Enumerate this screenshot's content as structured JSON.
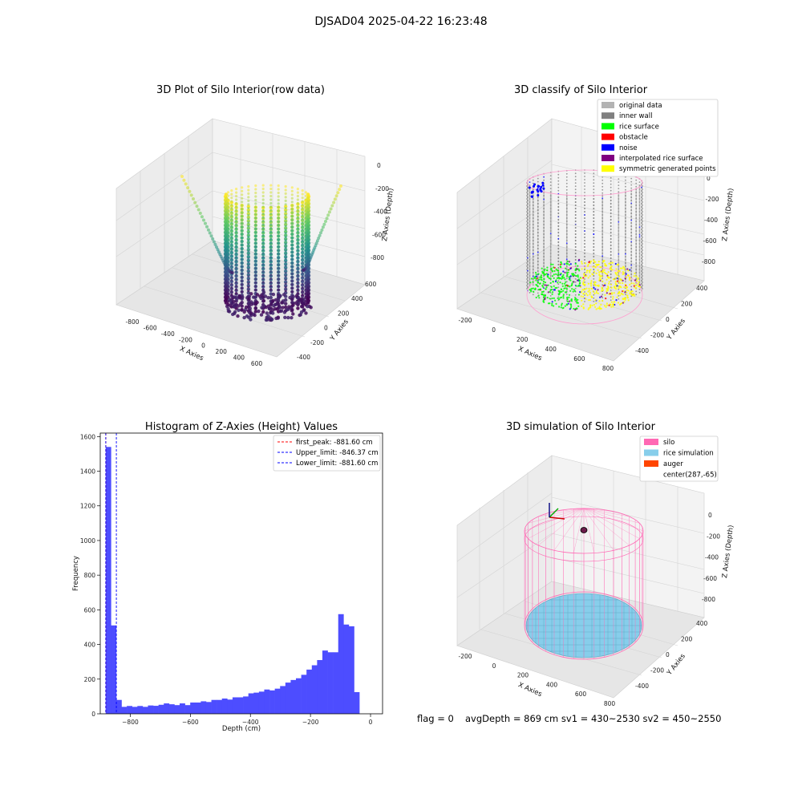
{
  "suptitle": "DJSAD04 2025-04-22 16:23:48",
  "footer": {
    "flag": "flag = 0",
    "stats": "avgDepth = 869 cm  sv1 = 430~2530  sv2 = 450~2550"
  },
  "chart_data": [
    {
      "type": "scatter3d",
      "title": "3D Plot of Silo Interior(row data)",
      "xlabel": "X Axies",
      "ylabel": "Y Axies",
      "zlabel": "Z Axies (Depth)",
      "x_ticks": [
        "-800",
        "-600",
        "-400",
        "-200",
        "0",
        "200",
        "400",
        "600"
      ],
      "y_ticks": [
        "-400",
        "-200",
        "0",
        "200",
        "400",
        "600"
      ],
      "z_ticks": [
        "0",
        "-200",
        "-400",
        "-600",
        "-800"
      ],
      "colormap": "viridis",
      "xlim": [
        -900,
        700
      ],
      "ylim": [
        -450,
        650
      ],
      "zlim": [
        -900,
        50
      ]
    },
    {
      "type": "scatter3d",
      "title": "3D classify of Silo Interior",
      "xlabel": "X Axies",
      "ylabel": "Y Axies",
      "zlabel": "Z Axies (Depth)",
      "x_ticks": [
        "-200",
        "0",
        "200",
        "400",
        "600",
        "800"
      ],
      "y_ticks": [
        "-400",
        "-200",
        "0",
        "200",
        "400"
      ],
      "z_ticks": [
        "0",
        "-200",
        "-400",
        "-600",
        "-800"
      ],
      "legend_position": "top-right",
      "legend": [
        {
          "label": "original data",
          "color": "#b3b3b3"
        },
        {
          "label": "inner wall",
          "color": "#808080"
        },
        {
          "label": "rice surface",
          "color": "#00ff00"
        },
        {
          "label": "obstacle",
          "color": "#ff0000"
        },
        {
          "label": "noise",
          "color": "#0000ff"
        },
        {
          "label": "interpolated rice surface",
          "color": "#800080"
        },
        {
          "label": "symmetric generated points",
          "color": "#ffff00"
        }
      ]
    },
    {
      "type": "bar",
      "title": "Histogram of Z-Axies (Height) Values",
      "xlabel": "Depth (cm)",
      "ylabel": "Frequency",
      "xlim": [
        -900,
        40
      ],
      "ylim": [
        0,
        1620
      ],
      "x_ticks": [
        -800,
        -600,
        -400,
        -200,
        0
      ],
      "y_ticks": [
        0,
        200,
        400,
        600,
        800,
        1000,
        1200,
        1400,
        1600
      ],
      "bar_color": "#4d4dff",
      "bin_start": -882,
      "bin_width": 17.6,
      "values": [
        1540,
        510,
        80,
        40,
        45,
        40,
        45,
        40,
        48,
        46,
        52,
        60,
        55,
        50,
        60,
        50,
        65,
        65,
        72,
        68,
        80,
        80,
        88,
        82,
        95,
        95,
        100,
        118,
        122,
        128,
        140,
        135,
        145,
        160,
        180,
        195,
        205,
        225,
        255,
        280,
        310,
        365,
        355,
        355,
        575,
        515,
        505,
        125
      ],
      "vlines": [
        {
          "label": "first_peak: -881.60 cm",
          "x": -881.6,
          "color": "#ff0000"
        },
        {
          "label": "Upper_limit: -846.37 cm",
          "x": -846.37,
          "color": "#0000ff"
        },
        {
          "label": "Lower_limit: -881.60 cm",
          "x": -881.6,
          "color": "#0000ff"
        }
      ],
      "legend_position": "top-right"
    },
    {
      "type": "surface3d",
      "title": "3D simulation of Silo Interior",
      "xlabel": "X Axies",
      "ylabel": "Y Axies",
      "zlabel": "Z Axies (Depth)",
      "x_ticks": [
        "-200",
        "0",
        "200",
        "400",
        "600",
        "800"
      ],
      "y_ticks": [
        "-400",
        "-200",
        "0",
        "200",
        "400"
      ],
      "z_ticks": [
        "0",
        "-200",
        "-400",
        "-600",
        "-800"
      ],
      "legend_position": "top-right",
      "legend": [
        {
          "label": "silo",
          "color": "#ff69b4"
        },
        {
          "label": "rice simulation",
          "color": "#87ceeb"
        },
        {
          "label": "auger",
          "color": "#ff4500"
        },
        {
          "label": "center(287,-65)",
          "color": ""
        }
      ]
    }
  ]
}
